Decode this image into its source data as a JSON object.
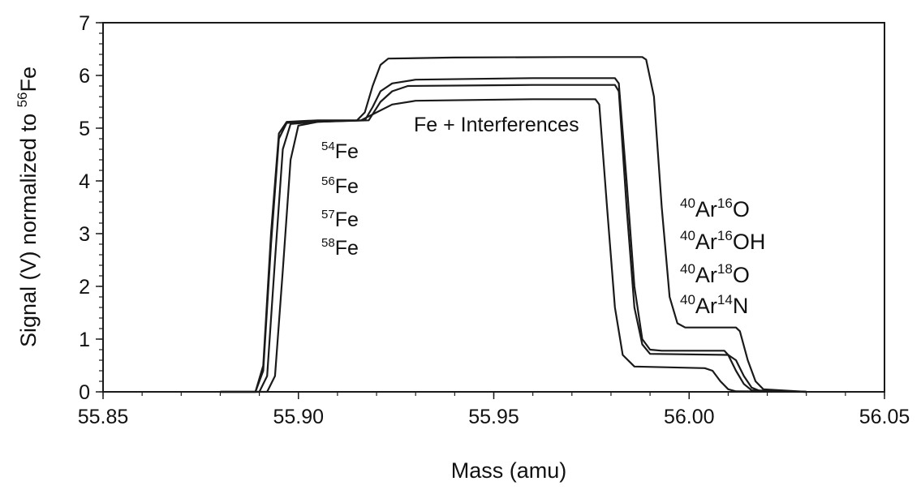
{
  "chart_data": {
    "type": "line",
    "title": "",
    "xlabel": "Mass (amu)",
    "ylabel": {
      "pre": "Signal (V) normalized to ",
      "sup": "56",
      "post": "Fe"
    },
    "xlim": [
      55.85,
      56.05
    ],
    "ylim": [
      0,
      7
    ],
    "xticks": [
      "55.85",
      "55.90",
      "55.95",
      "56.00",
      "56.05"
    ],
    "yticks": [
      "0",
      "1",
      "2",
      "3",
      "4",
      "5",
      "6",
      "7"
    ],
    "grid": false,
    "legend": "none",
    "line_color": "#1a1a1a",
    "annotations": {
      "center": "Fe + Interferences",
      "fe_isotopes": [
        {
          "sup": "54",
          "text": "Fe"
        },
        {
          "sup": "56",
          "text": "Fe"
        },
        {
          "sup": "57",
          "text": "Fe"
        },
        {
          "sup": "58",
          "text": "Fe"
        }
      ],
      "interferences": [
        [
          {
            "sup": "40",
            "text": "Ar"
          },
          {
            "sup": "16",
            "text": "O"
          }
        ],
        [
          {
            "sup": "40",
            "text": "Ar"
          },
          {
            "sup": "16",
            "text": "OH"
          }
        ],
        [
          {
            "sup": "40",
            "text": "Ar"
          },
          {
            "sup": "18",
            "text": "O"
          }
        ],
        [
          {
            "sup": "40",
            "text": "Ar"
          },
          {
            "sup": "14",
            "text": "N"
          }
        ]
      ]
    },
    "series": [
      {
        "points": [
          [
            55.88,
            0
          ],
          [
            55.889,
            0
          ],
          [
            55.891,
            0.5
          ],
          [
            55.893,
            3.0
          ],
          [
            55.895,
            4.9
          ],
          [
            55.897,
            5.12
          ],
          [
            55.905,
            5.15
          ],
          [
            55.915,
            5.15
          ],
          [
            55.917,
            5.3
          ],
          [
            55.919,
            5.8
          ],
          [
            55.921,
            6.2
          ],
          [
            55.923,
            6.32
          ],
          [
            55.94,
            6.34
          ],
          [
            55.97,
            6.35
          ],
          [
            55.988,
            6.35
          ],
          [
            55.989,
            6.3
          ],
          [
            55.991,
            5.6
          ],
          [
            55.993,
            3.5
          ],
          [
            55.995,
            1.8
          ],
          [
            55.997,
            1.3
          ],
          [
            55.999,
            1.22
          ],
          [
            56.012,
            1.22
          ],
          [
            56.013,
            1.15
          ],
          [
            56.015,
            0.6
          ],
          [
            56.017,
            0.2
          ],
          [
            56.019,
            0.05
          ],
          [
            56.03,
            0
          ]
        ]
      },
      {
        "points": [
          [
            55.88,
            0
          ],
          [
            55.889,
            0
          ],
          [
            55.891,
            0.4
          ],
          [
            55.893,
            2.8
          ],
          [
            55.895,
            4.8
          ],
          [
            55.897,
            5.1
          ],
          [
            55.905,
            5.13
          ],
          [
            55.917,
            5.15
          ],
          [
            55.919,
            5.4
          ],
          [
            55.921,
            5.7
          ],
          [
            55.924,
            5.85
          ],
          [
            55.93,
            5.92
          ],
          [
            55.96,
            5.95
          ],
          [
            55.981,
            5.95
          ],
          [
            55.982,
            5.85
          ],
          [
            55.984,
            4.0
          ],
          [
            55.986,
            2.0
          ],
          [
            55.988,
            1.0
          ],
          [
            55.99,
            0.8
          ],
          [
            55.993,
            0.78
          ],
          [
            56.009,
            0.78
          ],
          [
            56.01,
            0.7
          ],
          [
            56.012,
            0.4
          ],
          [
            56.014,
            0.15
          ],
          [
            56.016,
            0.03
          ],
          [
            56.03,
            0
          ]
        ]
      },
      {
        "points": [
          [
            55.88,
            0
          ],
          [
            55.89,
            0
          ],
          [
            55.892,
            0.3
          ],
          [
            55.894,
            2.5
          ],
          [
            55.896,
            4.6
          ],
          [
            55.898,
            5.08
          ],
          [
            55.905,
            5.12
          ],
          [
            55.918,
            5.15
          ],
          [
            55.921,
            5.5
          ],
          [
            55.924,
            5.7
          ],
          [
            55.928,
            5.8
          ],
          [
            55.96,
            5.82
          ],
          [
            55.981,
            5.82
          ],
          [
            55.982,
            5.7
          ],
          [
            55.984,
            3.5
          ],
          [
            55.986,
            1.6
          ],
          [
            55.988,
            0.9
          ],
          [
            55.99,
            0.72
          ],
          [
            56.01,
            0.7
          ],
          [
            56.012,
            0.6
          ],
          [
            56.014,
            0.3
          ],
          [
            56.016,
            0.08
          ],
          [
            56.018,
            0.02
          ],
          [
            56.03,
            0
          ]
        ]
      },
      {
        "points": [
          [
            55.88,
            0
          ],
          [
            55.892,
            0
          ],
          [
            55.894,
            0.3
          ],
          [
            55.896,
            2.3
          ],
          [
            55.898,
            4.4
          ],
          [
            55.9,
            5.05
          ],
          [
            55.905,
            5.12
          ],
          [
            55.916,
            5.15
          ],
          [
            55.92,
            5.3
          ],
          [
            55.924,
            5.45
          ],
          [
            55.93,
            5.52
          ],
          [
            55.96,
            5.55
          ],
          [
            55.976,
            5.55
          ],
          [
            55.977,
            5.45
          ],
          [
            55.979,
            3.5
          ],
          [
            55.981,
            1.6
          ],
          [
            55.983,
            0.7
          ],
          [
            55.986,
            0.48
          ],
          [
            56.004,
            0.45
          ],
          [
            56.006,
            0.4
          ],
          [
            56.008,
            0.2
          ],
          [
            56.01,
            0.05
          ],
          [
            56.012,
            0.01
          ],
          [
            56.03,
            0
          ]
        ]
      }
    ]
  }
}
